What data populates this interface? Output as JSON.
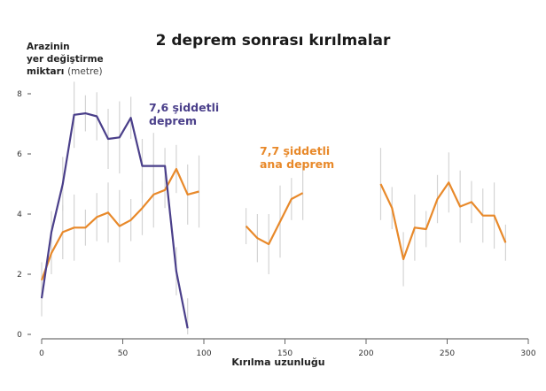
{
  "title": "2 deprem sonrası kırılmalar",
  "ylabel": {
    "line1": "Arazinin",
    "line2": "yer değiştirme",
    "line3_bold": "miktarı",
    "line3_light": "(metre)"
  },
  "xlabel": "Kırılma uzunluğu",
  "annotations": {
    "purple": {
      "line1": "7,6 şiddetli",
      "line2": "deprem",
      "color": "#4a3f8a"
    },
    "orange": {
      "line1": "7,7 şiddetli",
      "line2": "ana deprem",
      "color": "#e8892a"
    }
  },
  "chart_data": {
    "type": "line",
    "title": "2 deprem sonrası kırılmalar",
    "xlabel": "Kırılma uzunluğu",
    "ylabel": "Arazinin yer değiştirme miktarı (metre)",
    "xlim": [
      0,
      300
    ],
    "ylim": [
      0,
      8
    ],
    "xticks": [
      0,
      50,
      100,
      150,
      200,
      250,
      300
    ],
    "yticks": [
      0,
      2,
      4,
      6,
      8
    ],
    "grid": false,
    "error_bars": true,
    "series": [
      {
        "name": "7,6 şiddetli deprem",
        "color": "#4a3f8a",
        "segments": [
          [
            [
              0,
              1.2
            ],
            [
              6,
              3.4
            ],
            [
              13,
              5.0
            ],
            [
              20,
              7.3
            ],
            [
              27,
              7.35
            ],
            [
              34,
              7.25
            ],
            [
              41,
              6.5
            ],
            [
              48,
              6.55
            ],
            [
              55,
              7.2
            ],
            [
              62,
              5.6
            ],
            [
              69,
              5.6
            ],
            [
              76,
              5.6
            ],
            [
              83,
              2.1
            ],
            [
              90,
              0.2
            ]
          ]
        ]
      },
      {
        "name": "7,7 şiddetli ana deprem",
        "color": "#e8892a",
        "segments": [
          [
            [
              0,
              1.8
            ],
            [
              6,
              2.7
            ],
            [
              13,
              3.4
            ],
            [
              20,
              3.55
            ],
            [
              27,
              3.55
            ],
            [
              34,
              3.9
            ],
            [
              41,
              4.05
            ],
            [
              48,
              3.6
            ],
            [
              55,
              3.8
            ],
            [
              62,
              4.2
            ],
            [
              69,
              4.65
            ],
            [
              76,
              4.8
            ],
            [
              83,
              5.5
            ],
            [
              90,
              4.65
            ],
            [
              97,
              4.75
            ]
          ],
          [
            [
              126,
              3.6
            ],
            [
              133,
              3.2
            ],
            [
              140,
              3.0
            ],
            [
              147,
              3.75
            ],
            [
              154,
              4.5
            ],
            [
              161,
              4.7
            ]
          ],
          [
            [
              209,
              5.0
            ],
            [
              216,
              4.2
            ],
            [
              223,
              2.5
            ],
            [
              230,
              3.55
            ],
            [
              237,
              3.5
            ],
            [
              244,
              4.5
            ],
            [
              251,
              5.05
            ],
            [
              258,
              4.25
            ],
            [
              265,
              4.4
            ],
            [
              272,
              3.95
            ],
            [
              279,
              3.95
            ],
            [
              286,
              3.05
            ]
          ]
        ]
      }
    ]
  }
}
